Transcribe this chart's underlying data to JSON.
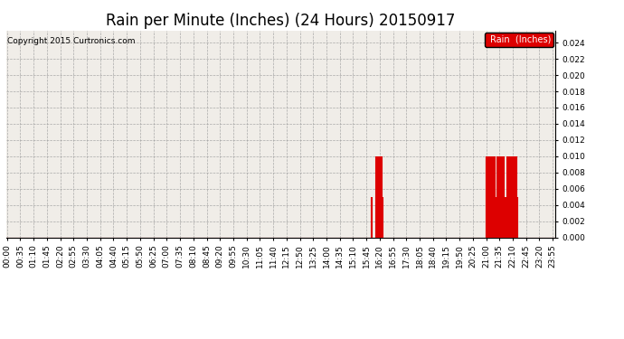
{
  "title": "Rain per Minute (Inches) (24 Hours) 20150917",
  "copyright": "Copyright 2015 Curtronics.com",
  "legend_label": "Rain  (Inches)",
  "legend_bg": "#dd0000",
  "legend_fg": "#ffffff",
  "bar_color": "#dd0000",
  "line_color": "#cc0000",
  "bg_color": "#f0ede8",
  "fig_color": "#ffffff",
  "grid_color": "#999999",
  "border_color": "#000000",
  "ylim": [
    0.0,
    0.0255
  ],
  "yticks": [
    0.0,
    0.002,
    0.004,
    0.006,
    0.008,
    0.01,
    0.012,
    0.014,
    0.016,
    0.018,
    0.02,
    0.022,
    0.024
  ],
  "title_fontsize": 12,
  "axis_fontsize": 6.5,
  "total_minutes": 1440,
  "rain_events": [
    {
      "minute": 960,
      "value": 0.005
    },
    {
      "minute": 972,
      "value": 0.01
    },
    {
      "minute": 975,
      "value": 0.01
    },
    {
      "minute": 977,
      "value": 0.01
    },
    {
      "minute": 979,
      "value": 0.01
    },
    {
      "minute": 981,
      "value": 0.01
    },
    {
      "minute": 984,
      "value": 0.005
    },
    {
      "minute": 986,
      "value": 0.01
    },
    {
      "minute": 988,
      "value": 0.005
    },
    {
      "minute": 1260,
      "value": 0.01
    },
    {
      "minute": 1262,
      "value": 0.01
    },
    {
      "minute": 1264,
      "value": 0.005
    },
    {
      "minute": 1266,
      "value": 0.01
    },
    {
      "minute": 1268,
      "value": 0.01
    },
    {
      "minute": 1270,
      "value": 0.01
    },
    {
      "minute": 1272,
      "value": 0.01
    },
    {
      "minute": 1274,
      "value": 0.01
    },
    {
      "minute": 1276,
      "value": 0.005
    },
    {
      "minute": 1278,
      "value": 0.01
    },
    {
      "minute": 1280,
      "value": 0.01
    },
    {
      "minute": 1282,
      "value": 0.01
    },
    {
      "minute": 1284,
      "value": 0.005
    },
    {
      "minute": 1290,
      "value": 0.01
    },
    {
      "minute": 1292,
      "value": 0.01
    },
    {
      "minute": 1294,
      "value": 0.01
    },
    {
      "minute": 1296,
      "value": 0.01
    },
    {
      "minute": 1300,
      "value": 0.005
    },
    {
      "minute": 1302,
      "value": 0.01
    },
    {
      "minute": 1304,
      "value": 0.01
    },
    {
      "minute": 1306,
      "value": 0.01
    },
    {
      "minute": 1310,
      "value": 0.005
    },
    {
      "minute": 1316,
      "value": 0.01
    },
    {
      "minute": 1318,
      "value": 0.01
    },
    {
      "minute": 1320,
      "value": 0.005
    },
    {
      "minute": 1322,
      "value": 0.01
    },
    {
      "minute": 1324,
      "value": 0.01
    },
    {
      "minute": 1326,
      "value": 0.01
    },
    {
      "minute": 1328,
      "value": 0.01
    },
    {
      "minute": 1330,
      "value": 0.01
    },
    {
      "minute": 1332,
      "value": 0.005
    },
    {
      "minute": 1334,
      "value": 0.01
    },
    {
      "minute": 1336,
      "value": 0.005
    },
    {
      "minute": 1338,
      "value": 0.01
    },
    {
      "minute": 1340,
      "value": 0.01
    },
    {
      "minute": 1342,
      "value": 0.005
    }
  ],
  "xtick_positions": [
    0,
    35,
    70,
    105,
    140,
    175,
    210,
    245,
    280,
    315,
    350,
    385,
    420,
    455,
    490,
    525,
    560,
    595,
    630,
    665,
    700,
    735,
    770,
    805,
    840,
    875,
    910,
    945,
    980,
    1015,
    1050,
    1085,
    1120,
    1155,
    1190,
    1225,
    1260,
    1295,
    1330,
    1365,
    1400,
    1435
  ],
  "xtick_labels": [
    "00:00",
    "00:35",
    "01:10",
    "01:45",
    "02:20",
    "02:55",
    "03:30",
    "04:05",
    "04:40",
    "05:15",
    "05:50",
    "06:25",
    "07:00",
    "07:35",
    "08:10",
    "08:45",
    "09:20",
    "09:55",
    "10:30",
    "11:05",
    "11:40",
    "12:15",
    "12:50",
    "13:25",
    "14:00",
    "14:35",
    "15:10",
    "15:45",
    "16:20",
    "16:55",
    "17:30",
    "18:05",
    "18:40",
    "19:15",
    "19:50",
    "20:25",
    "21:00",
    "21:35",
    "22:10",
    "22:45",
    "23:20",
    "23:55"
  ]
}
